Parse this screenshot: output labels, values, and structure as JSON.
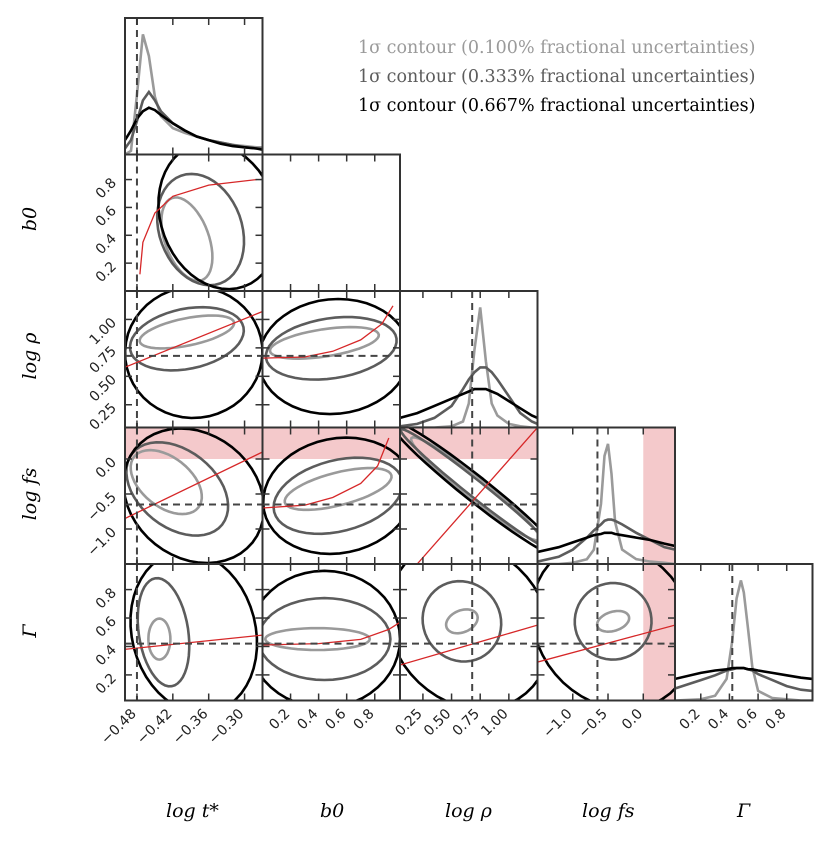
{
  "legend": {
    "items": [
      {
        "text": "1σ contour (0.100% fractional uncertainties)",
        "color": "#9a9a9a"
      },
      {
        "text": "1σ contour (0.333% fractional uncertainties)",
        "color": "#5c5c5c"
      },
      {
        "text": "1σ contour (0.667% fractional uncertainties)",
        "color": "#000000"
      }
    ]
  },
  "axis_labels": {
    "x": [
      "log t*",
      "b0",
      "log ρ",
      "log fs",
      "Γ"
    ],
    "y": [
      "b0",
      "log ρ",
      "log fs",
      "Γ"
    ]
  },
  "chart_data": {
    "type": "corner",
    "parameters": [
      "log t*",
      "b0",
      "log ρ",
      "log fs",
      "Γ"
    ],
    "ranges": {
      "log t*": [
        -0.5,
        -0.27
      ],
      "b0": [
        0.0,
        0.98
      ],
      "log ρ": [
        0.05,
        1.25
      ],
      "log fs": [
        -1.5,
        0.45
      ],
      "Γ": [
        0.02,
        0.98
      ]
    },
    "x_ticks": {
      "log t*": [
        "−0.48",
        "−0.42",
        "−0.36",
        "−0.30"
      ],
      "b0": [
        "0.2",
        "0.4",
        "0.6",
        "0.8"
      ],
      "log ρ": [
        "0.25",
        "0.50",
        "0.75",
        "1.00"
      ],
      "log fs": [
        "−1.0",
        "−0.5",
        "0.0"
      ],
      "Γ": [
        "0.2",
        "0.4",
        "0.6",
        "0.8"
      ]
    },
    "y_ticks": {
      "b0": [
        "0.2",
        "0.4",
        "0.6",
        "0.8"
      ],
      "log ρ": [
        "0.25",
        "0.50",
        "0.75",
        "1.00"
      ],
      "log fs": [
        "−1.0",
        "−0.5",
        "0.0"
      ],
      "Γ": [
        "0.2",
        "0.4",
        "0.6",
        "0.8"
      ]
    },
    "truth": {
      "log t*": -0.48,
      "log ρ": 0.68,
      "log fs": -0.65,
      "Γ": 0.42
    },
    "excluded_region": {
      "log fs": [
        0.0,
        0.45
      ]
    },
    "series": [
      {
        "name": "1σ contour (0.100% fractional uncertainties)",
        "color": "#9a9a9a",
        "fractional_uncertainty_percent": 0.1
      },
      {
        "name": "1σ contour (0.333% fractional uncertainties)",
        "color": "#5c5c5c",
        "fractional_uncertainty_percent": 0.333
      },
      {
        "name": "1σ contour (0.667% fractional uncertainties)",
        "color": "#000000",
        "fractional_uncertainty_percent": 0.667
      }
    ],
    "marginals": {
      "log t*": {
        "x": [
          -0.5,
          -0.49,
          -0.48,
          -0.47,
          -0.46,
          -0.45,
          -0.44,
          -0.42,
          -0.4,
          -0.38,
          -0.36,
          -0.34,
          -0.32,
          -0.3,
          -0.28,
          -0.27
        ],
        "series": [
          [
            0.0,
            0.03,
            0.5,
            1.0,
            0.82,
            0.48,
            0.32,
            0.22,
            0.18,
            0.15,
            0.12,
            0.1,
            0.08,
            0.07,
            0.06,
            0.06
          ],
          [
            0.05,
            0.12,
            0.28,
            0.45,
            0.52,
            0.45,
            0.36,
            0.26,
            0.2,
            0.15,
            0.12,
            0.1,
            0.08,
            0.06,
            0.05,
            0.05
          ],
          [
            0.12,
            0.2,
            0.3,
            0.36,
            0.39,
            0.37,
            0.33,
            0.26,
            0.2,
            0.15,
            0.12,
            0.09,
            0.07,
            0.06,
            0.05,
            0.04
          ]
        ]
      },
      "log ρ": {
        "x": [
          0.05,
          0.2,
          0.35,
          0.5,
          0.6,
          0.65,
          0.7,
          0.75,
          0.8,
          0.85,
          0.9,
          1.0,
          1.1,
          1.2,
          1.25
        ],
        "series": [
          [
            0,
            0,
            0,
            0.01,
            0.05,
            0.2,
            0.65,
            1.0,
            0.55,
            0.2,
            0.1,
            0.03,
            0.01,
            0,
            0
          ],
          [
            0.01,
            0.03,
            0.08,
            0.18,
            0.32,
            0.4,
            0.46,
            0.5,
            0.5,
            0.46,
            0.4,
            0.26,
            0.12,
            0.05,
            0.03
          ],
          [
            0.08,
            0.12,
            0.18,
            0.24,
            0.28,
            0.3,
            0.32,
            0.32,
            0.32,
            0.3,
            0.28,
            0.22,
            0.16,
            0.1,
            0.08
          ]
        ]
      },
      "log fs": {
        "x": [
          -1.5,
          -1.2,
          -1.0,
          -0.8,
          -0.7,
          -0.6,
          -0.55,
          -0.5,
          -0.45,
          -0.4,
          -0.3,
          -0.1,
          0.1,
          0.3,
          0.45
        ],
        "series": [
          [
            0,
            0,
            0.01,
            0.04,
            0.12,
            0.5,
            0.9,
            1.0,
            0.75,
            0.35,
            0.12,
            0.04,
            0.02,
            0.01,
            0
          ],
          [
            0.02,
            0.06,
            0.12,
            0.22,
            0.28,
            0.33,
            0.36,
            0.37,
            0.37,
            0.36,
            0.33,
            0.26,
            0.2,
            0.14,
            0.12
          ],
          [
            0.1,
            0.14,
            0.18,
            0.22,
            0.24,
            0.25,
            0.26,
            0.26,
            0.26,
            0.25,
            0.24,
            0.22,
            0.2,
            0.17,
            0.15
          ]
        ]
      },
      "Γ": {
        "x": [
          0.02,
          0.2,
          0.3,
          0.38,
          0.42,
          0.45,
          0.48,
          0.5,
          0.53,
          0.56,
          0.6,
          0.7,
          0.8,
          0.9,
          0.98
        ],
        "series": [
          [
            0,
            0.01,
            0.04,
            0.18,
            0.5,
            0.85,
            1.0,
            0.9,
            0.6,
            0.28,
            0.08,
            0.02,
            0.01,
            0,
            0
          ],
          [
            0.1,
            0.17,
            0.21,
            0.25,
            0.26,
            0.27,
            0.27,
            0.27,
            0.26,
            0.25,
            0.22,
            0.17,
            0.12,
            0.09,
            0.08
          ],
          [
            0.18,
            0.23,
            0.25,
            0.26,
            0.27,
            0.27,
            0.27,
            0.27,
            0.26,
            0.26,
            0.25,
            0.23,
            0.21,
            0.19,
            0.18
          ]
        ]
      }
    },
    "trend_lines": [
      {
        "x_param": "log t*",
        "y_param": "b0",
        "points": [
          [
            -0.475,
            0.12
          ],
          [
            -0.47,
            0.35
          ],
          [
            -0.45,
            0.56
          ],
          [
            -0.42,
            0.68
          ],
          [
            -0.36,
            0.76
          ],
          [
            -0.28,
            0.8
          ]
        ]
      },
      {
        "x_param": "log t*",
        "y_param": "log ρ",
        "points": [
          [
            -0.5,
            0.58
          ],
          [
            -0.27,
            1.07
          ]
        ]
      },
      {
        "x_param": "log t*",
        "y_param": "log fs",
        "points": [
          [
            -0.5,
            -0.85
          ],
          [
            -0.27,
            0.1
          ]
        ]
      },
      {
        "x_param": "log t*",
        "y_param": "Γ",
        "points": [
          [
            -0.5,
            0.38
          ],
          [
            -0.27,
            0.48
          ]
        ]
      },
      {
        "x_param": "b0",
        "y_param": "log ρ",
        "points": [
          [
            0.0,
            0.66
          ],
          [
            0.3,
            0.67
          ],
          [
            0.5,
            0.72
          ],
          [
            0.7,
            0.82
          ],
          [
            0.85,
            0.96
          ],
          [
            0.93,
            1.12
          ]
        ]
      },
      {
        "x_param": "b0",
        "y_param": "log fs",
        "points": [
          [
            0.0,
            -0.7
          ],
          [
            0.3,
            -0.66
          ],
          [
            0.5,
            -0.55
          ],
          [
            0.7,
            -0.35
          ],
          [
            0.82,
            -0.1
          ],
          [
            0.9,
            0.3
          ]
        ]
      },
      {
        "x_param": "b0",
        "y_param": "Γ",
        "points": [
          [
            0.0,
            0.41
          ],
          [
            0.4,
            0.42
          ],
          [
            0.7,
            0.45
          ],
          [
            0.9,
            0.52
          ],
          [
            0.98,
            0.57
          ]
        ]
      },
      {
        "x_param": "log ρ",
        "y_param": "log fs",
        "points": [
          [
            0.2,
            -1.5
          ],
          [
            1.25,
            0.45
          ]
        ]
      },
      {
        "x_param": "log ρ",
        "y_param": "Γ",
        "points": [
          [
            0.05,
            0.27
          ],
          [
            1.25,
            0.55
          ]
        ]
      },
      {
        "x_param": "log fs",
        "y_param": "Γ",
        "points": [
          [
            -1.5,
            0.29
          ],
          [
            0.45,
            0.55
          ]
        ]
      }
    ]
  }
}
